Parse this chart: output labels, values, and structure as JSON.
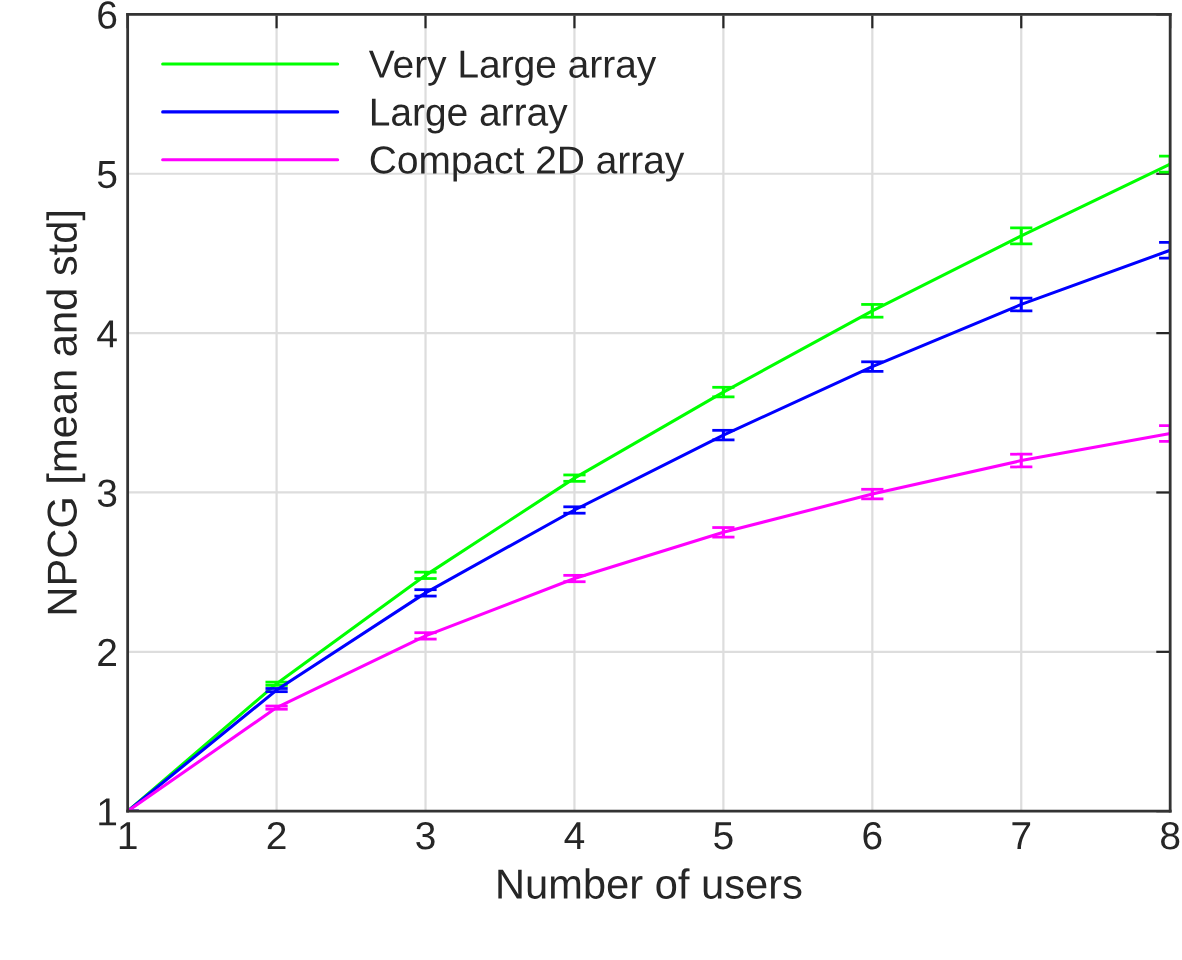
{
  "chart_data": {
    "type": "line",
    "xlabel": "Number of users",
    "ylabel": "NPCG [mean and std]",
    "x": [
      1,
      2,
      3,
      4,
      5,
      6,
      7,
      8
    ],
    "series": [
      {
        "name": "Very Large array",
        "color": "#00ff00",
        "values": [
          1,
          1.8,
          2.48,
          3.09,
          3.63,
          4.14,
          4.61,
          5.06
        ],
        "errors": [
          0,
          0.01,
          0.02,
          0.02,
          0.03,
          0.04,
          0.05,
          0.05
        ]
      },
      {
        "name": "Large array",
        "color": "#0000ff",
        "values": [
          1,
          1.76,
          2.37,
          2.89,
          3.36,
          3.79,
          4.18,
          4.52
        ],
        "errors": [
          0,
          0.01,
          0.02,
          0.02,
          0.03,
          0.03,
          0.04,
          0.05
        ]
      },
      {
        "name": "Compact 2D array",
        "color": "#ff00ff",
        "values": [
          1,
          1.65,
          2.1,
          2.46,
          2.75,
          2.99,
          3.2,
          3.37
        ],
        "errors": [
          0,
          0.01,
          0.02,
          0.02,
          0.03,
          0.03,
          0.04,
          0.05
        ]
      }
    ],
    "xlim": [
      1,
      8
    ],
    "xticks": [
      1,
      2,
      3,
      4,
      5,
      6,
      7,
      8
    ],
    "ylim": [
      1,
      6
    ],
    "yticks": [
      1,
      2,
      3,
      4,
      5,
      6
    ],
    "grid": true,
    "legend": "top left"
  }
}
